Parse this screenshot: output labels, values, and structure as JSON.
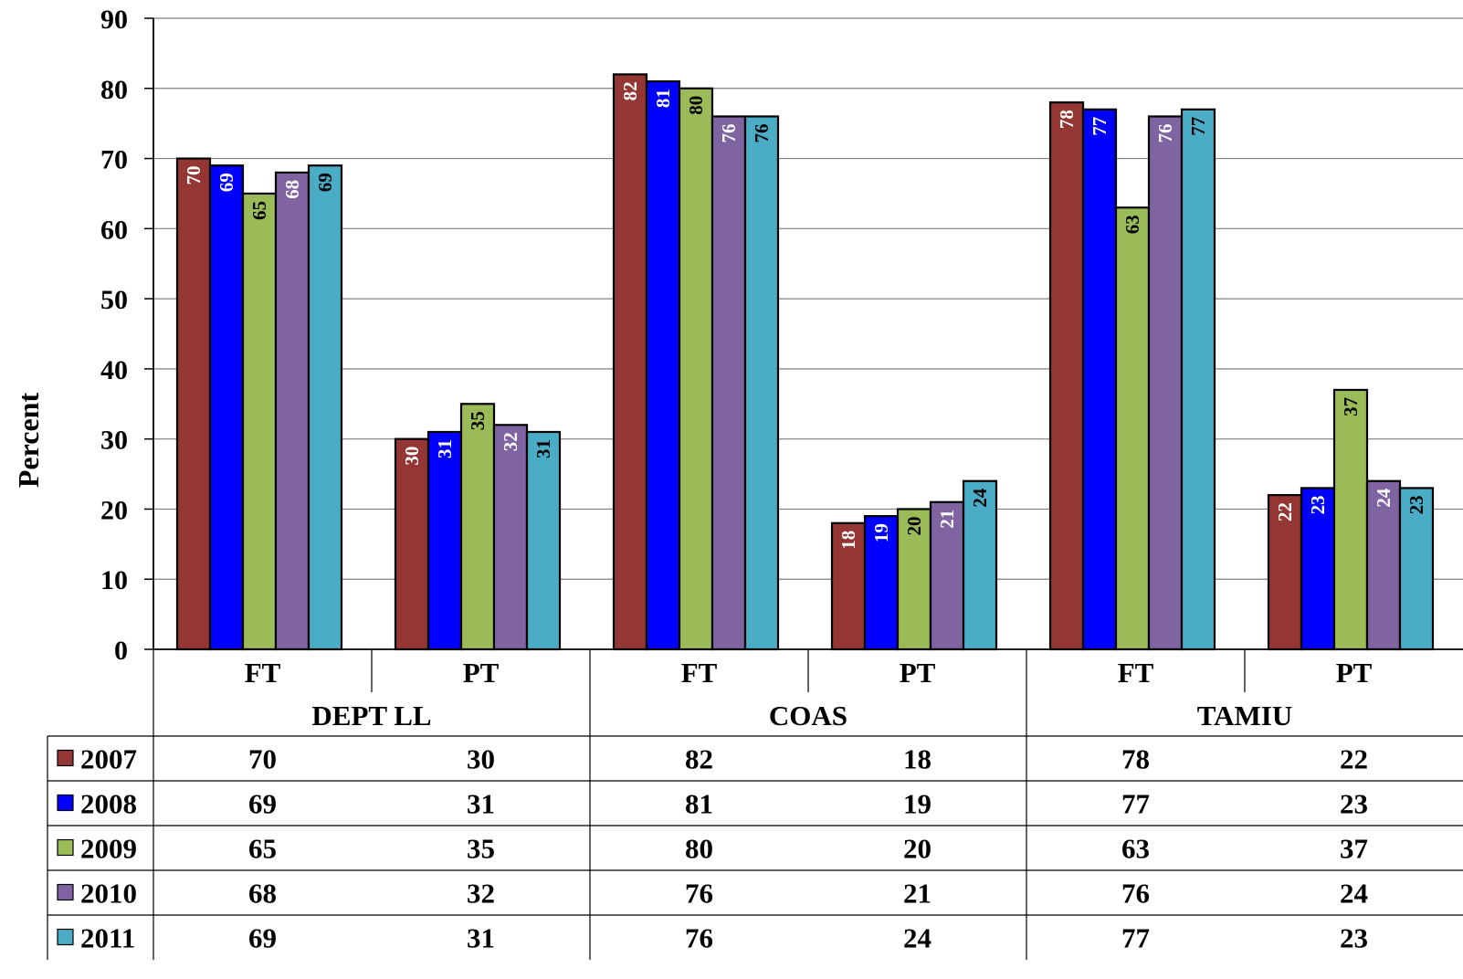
{
  "chart_data": {
    "type": "bar",
    "title": "",
    "ylabel": "Percent",
    "ylim": [
      0,
      90
    ],
    "y_ticks": [
      0,
      10,
      20,
      30,
      40,
      50,
      60,
      70,
      80,
      90
    ],
    "grid": true,
    "legend_placement": "data-table",
    "groups": [
      "DEPT LL",
      "COAS",
      "TAMIU"
    ],
    "categories": [
      "FT",
      "PT",
      "FT",
      "PT",
      "FT",
      "PT"
    ],
    "series": [
      {
        "name": "2007",
        "color": "#943634",
        "label_color": "#ffffff",
        "values": [
          70,
          30,
          82,
          18,
          78,
          22
        ]
      },
      {
        "name": "2008",
        "color": "#0000ff",
        "label_color": "#ffffff",
        "values": [
          69,
          31,
          81,
          19,
          77,
          23
        ]
      },
      {
        "name": "2009",
        "color": "#9bbb59",
        "label_color": "#000000",
        "values": [
          65,
          35,
          80,
          20,
          63,
          37
        ]
      },
      {
        "name": "2010",
        "color": "#8064a2",
        "label_color": "#ffffff",
        "values": [
          68,
          32,
          76,
          21,
          76,
          24
        ]
      },
      {
        "name": "2011",
        "color": "#4bacc6",
        "label_color": "#000000",
        "values": [
          69,
          31,
          76,
          24,
          77,
          23
        ]
      }
    ]
  }
}
